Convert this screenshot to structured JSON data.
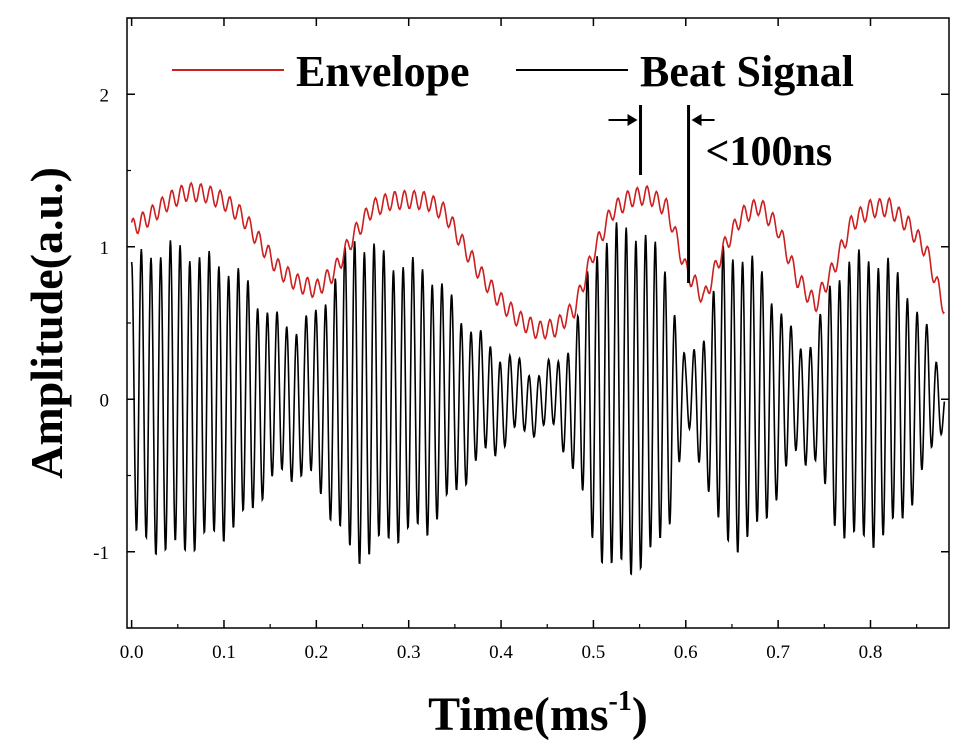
{
  "chart_data": {
    "type": "line",
    "xlabel": "Time(ms",
    "xlabel_sup": "-1",
    "xlabel_close": ")",
    "ylabel": "Amplitude(a.u.)",
    "xlim": [
      -0.005,
      0.885
    ],
    "ylim": [
      -1.5,
      2.5
    ],
    "x_ticks": [
      0.0,
      0.1,
      0.2,
      0.3,
      0.4,
      0.5,
      0.6,
      0.7,
      0.8
    ],
    "x_tick_labels": [
      "0.0",
      "0.1",
      "0.2",
      "0.3",
      "0.4",
      "0.5",
      "0.6",
      "0.7",
      "0.8"
    ],
    "y_ticks": [
      -1,
      0,
      1,
      2
    ],
    "y_tick_labels": [
      "-1",
      "0",
      "1",
      "2"
    ],
    "legend_position": "top",
    "annotation": {
      "text": "<100ns",
      "x_start": 0.551,
      "x_end": 0.603
    },
    "series": [
      {
        "name": "Envelope",
        "color": "#cc1f1f",
        "x": [
          0.0,
          0.02,
          0.04,
          0.06,
          0.08,
          0.1,
          0.12,
          0.14,
          0.16,
          0.18,
          0.2,
          0.22,
          0.24,
          0.26,
          0.28,
          0.3,
          0.32,
          0.34,
          0.36,
          0.38,
          0.4,
          0.42,
          0.44,
          0.46,
          0.48,
          0.5,
          0.52,
          0.54,
          0.56,
          0.58,
          0.6,
          0.62,
          0.64,
          0.66,
          0.68,
          0.7,
          0.72,
          0.74,
          0.76,
          0.78,
          0.8,
          0.82,
          0.84,
          0.86,
          0.88
        ],
        "values": [
          1.12,
          1.2,
          1.3,
          1.36,
          1.35,
          1.3,
          1.2,
          1.02,
          0.85,
          0.76,
          0.72,
          0.84,
          1.07,
          1.25,
          1.3,
          1.31,
          1.3,
          1.22,
          1.0,
          0.8,
          0.64,
          0.52,
          0.45,
          0.47,
          0.6,
          0.96,
          1.23,
          1.32,
          1.34,
          1.25,
          0.85,
          0.66,
          0.98,
          1.2,
          1.27,
          1.12,
          0.8,
          0.62,
          0.86,
          1.16,
          1.25,
          1.26,
          1.15,
          0.98,
          0.6
        ]
      },
      {
        "name": "Beat Signal",
        "color": "#000000",
        "x": [
          0.0,
          0.02,
          0.04,
          0.06,
          0.08,
          0.1,
          0.12,
          0.14,
          0.16,
          0.18,
          0.2,
          0.22,
          0.24,
          0.26,
          0.28,
          0.3,
          0.32,
          0.34,
          0.36,
          0.38,
          0.4,
          0.42,
          0.44,
          0.46,
          0.48,
          0.5,
          0.52,
          0.54,
          0.56,
          0.58,
          0.6,
          0.62,
          0.64,
          0.66,
          0.68,
          0.7,
          0.72,
          0.74,
          0.76,
          0.78,
          0.8,
          0.82,
          0.84,
          0.86,
          0.88
        ],
        "envelope_amplitude": [
          0.9,
          0.95,
          1.0,
          0.97,
          0.92,
          0.88,
          0.8,
          0.62,
          0.5,
          0.48,
          0.55,
          0.8,
          1.05,
          1.0,
          0.9,
          0.88,
          0.85,
          0.7,
          0.52,
          0.38,
          0.3,
          0.22,
          0.18,
          0.22,
          0.45,
          0.95,
          1.1,
          1.12,
          1.05,
          0.85,
          0.2,
          0.45,
          0.95,
          0.95,
          0.85,
          0.6,
          0.35,
          0.4,
          0.8,
          0.92,
          0.93,
          0.88,
          0.72,
          0.45,
          0.12
        ],
        "oscillation_period": 0.0105
      }
    ]
  }
}
